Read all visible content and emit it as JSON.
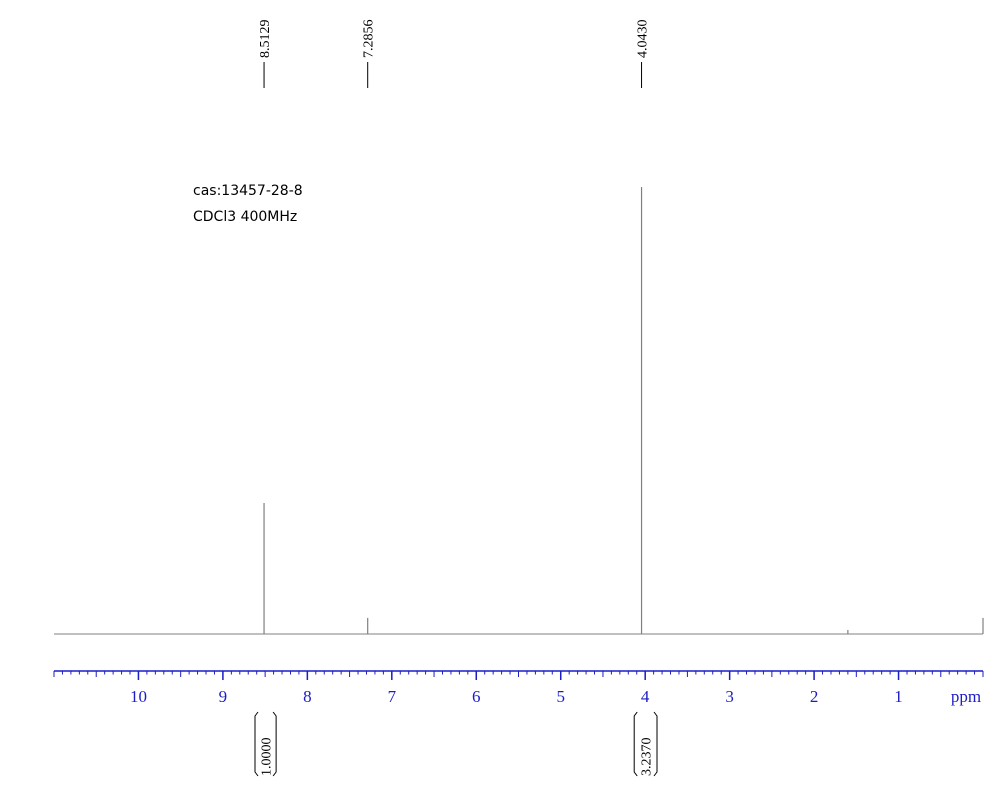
{
  "chart_data": {
    "type": "nmr",
    "annotations": [
      "cas:13457-28-8",
      "CDCl3 400MHz"
    ],
    "x": [
      8.5129,
      7.2856,
      4.043,
      1.6,
      0.0
    ],
    "values": [
      29.3,
      3.6,
      100,
      0.9,
      3.6
    ],
    "peak_labels": [
      "8.5129",
      "7.2856",
      "4.0430",
      null,
      null
    ],
    "integrals": [
      {
        "from": 8.62,
        "to": 8.37,
        "value": 1.0,
        "label": "1.0000"
      },
      {
        "from": 4.13,
        "to": 3.86,
        "value": 3.237,
        "label": "3.2370"
      }
    ],
    "xlabel": "ppm",
    "xlim": [
      11,
      0
    ],
    "ylim": [
      0,
      100
    ],
    "xticks": [
      10,
      9,
      8,
      7,
      6,
      5,
      4,
      3,
      2,
      1
    ],
    "minor_tick_step": 0.1,
    "line_color": "#808080",
    "axis_color": "#1c1cc8"
  }
}
